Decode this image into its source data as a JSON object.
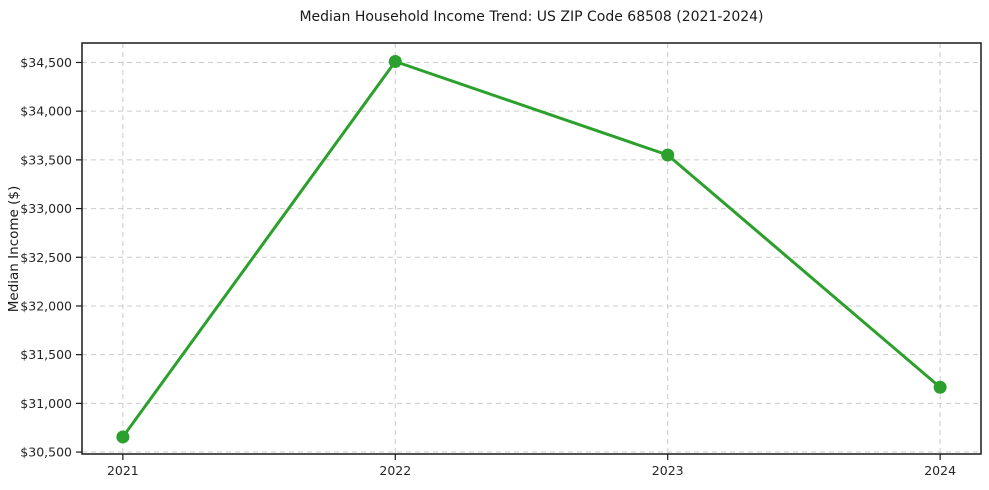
{
  "figure": {
    "background": "#ffffff"
  },
  "chart_data": {
    "type": "line",
    "title": "Median Household Income Trend: US ZIP Code 68508 (2021-2024)",
    "xlabel": "",
    "ylabel": "Median Income ($)",
    "x": [
      2021,
      2022,
      2023,
      2024
    ],
    "x_tick_labels": [
      "2021",
      "2022",
      "2023",
      "2024"
    ],
    "values": [
      30655,
      34510,
      33550,
      31165
    ],
    "y_ticks": [
      30500,
      31000,
      31500,
      32000,
      32500,
      33000,
      33500,
      34000,
      34500
    ],
    "y_tick_labels": [
      "$30,500",
      "$31,000",
      "$31,500",
      "$32,000",
      "$32,500",
      "$33,000",
      "$33,500",
      "$34,000",
      "$34,500"
    ],
    "xlim": [
      2020.85,
      2024.15
    ],
    "ylim": [
      30480,
      34700
    ],
    "grid": true,
    "legend": "none",
    "line_color": "#2ca02c",
    "grid_color": "#cbcbcb",
    "axis_color": "#1a1a1a",
    "tick_label_color": "#262626"
  }
}
